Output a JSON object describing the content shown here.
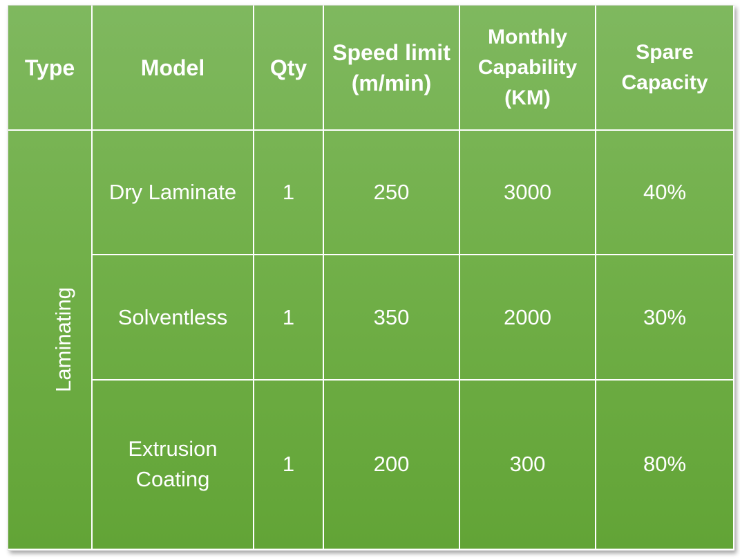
{
  "colors": {
    "table_top": "#7fb85f",
    "table_bottom": "#62a436",
    "text": "#ffffff",
    "grid": "#ffffff"
  },
  "headers": [
    "Type",
    "Model",
    "Qty",
    "Speed limit(m/min)",
    "Monthly Capability (KM)",
    "Spare Capacity"
  ],
  "type_label": "Laminating",
  "rows": [
    {
      "model": "Dry Laminate",
      "qty": "1",
      "speed": "250",
      "monthly": "3000",
      "spare": "40%"
    },
    {
      "model": "Solventless",
      "qty": "1",
      "speed": "350",
      "monthly": "2000",
      "spare": "30%"
    },
    {
      "model": "Extrusion Coating",
      "qty": "1",
      "speed": "200",
      "monthly": "300",
      "spare": "80%"
    }
  ]
}
